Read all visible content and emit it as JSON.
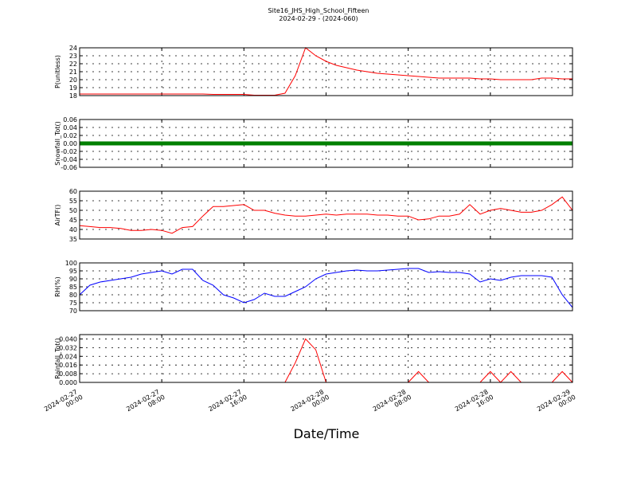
{
  "title": "Site16_JHS_High_School_Fifteen",
  "subtitle": "2024-02-29 - (2024-060)",
  "xlabel": "Date/Time",
  "chart_data": [
    {
      "type": "line",
      "ylabel": "P(unitless)",
      "color": "#ff0000",
      "ylim": [
        18,
        24
      ],
      "yticks": [
        18,
        19,
        20,
        21,
        22,
        23,
        24
      ],
      "grid": true,
      "xlim": [
        "2024-02-27 00:00",
        "2024-02-29 00:00"
      ],
      "x": [
        "2024-02-27 00:00",
        "2024-02-27 01:00",
        "2024-02-27 02:00",
        "2024-02-27 03:00",
        "2024-02-27 04:00",
        "2024-02-27 05:00",
        "2024-02-27 06:00",
        "2024-02-27 07:00",
        "2024-02-27 08:00",
        "2024-02-27 09:00",
        "2024-02-27 10:00",
        "2024-02-27 11:00",
        "2024-02-27 12:00",
        "2024-02-27 13:00",
        "2024-02-27 14:00",
        "2024-02-27 15:00",
        "2024-02-27 16:00",
        "2024-02-27 17:00",
        "2024-02-27 18:00",
        "2024-02-27 19:00",
        "2024-02-27 20:00",
        "2024-02-27 21:00",
        "2024-02-27 22:00",
        "2024-02-27 23:00",
        "2024-02-28 00:00",
        "2024-02-28 01:00",
        "2024-02-28 02:00",
        "2024-02-28 03:00",
        "2024-02-28 04:00",
        "2024-02-28 05:00",
        "2024-02-28 06:00",
        "2024-02-28 07:00",
        "2024-02-28 08:00",
        "2024-02-28 09:00",
        "2024-02-28 10:00",
        "2024-02-28 11:00",
        "2024-02-28 12:00",
        "2024-02-28 13:00",
        "2024-02-28 14:00",
        "2024-02-28 15:00",
        "2024-02-28 16:00",
        "2024-02-28 17:00",
        "2024-02-28 18:00",
        "2024-02-28 19:00",
        "2024-02-28 20:00",
        "2024-02-28 21:00",
        "2024-02-28 22:00",
        "2024-02-28 23:00",
        "2024-02-29 00:00"
      ],
      "values": [
        18.2,
        18.2,
        18.2,
        18.2,
        18.2,
        18.2,
        18.2,
        18.2,
        18.2,
        18.2,
        18.2,
        18.2,
        18.2,
        18.15,
        18.15,
        18.15,
        18.15,
        18.05,
        18.05,
        18.05,
        18.3,
        20.5,
        24,
        23,
        22.3,
        21.8,
        21.5,
        21.2,
        21,
        20.8,
        20.7,
        20.6,
        20.5,
        20.4,
        20.3,
        20.2,
        20.2,
        20.2,
        20.2,
        20.1,
        20.1,
        20,
        20,
        20,
        20,
        20.2,
        20.2,
        20.1,
        20.1
      ]
    },
    {
      "type": "line",
      "ylabel": "Snowfall_Tot()",
      "color": "#008000",
      "ylim": [
        -0.06,
        0.06
      ],
      "yticks": [
        -0.06,
        -0.04,
        -0.02,
        {
          "value": 0,
          "label": "0.00"
        },
        0.02,
        0.04,
        0.06
      ],
      "grid": true,
      "xlim": [
        "2024-02-27 00:00",
        "2024-02-29 00:00"
      ],
      "x": [
        "2024-02-27 00:00",
        "2024-02-27 01:00",
        "2024-02-27 02:00",
        "2024-02-27 03:00",
        "2024-02-27 04:00",
        "2024-02-27 05:00",
        "2024-02-27 06:00",
        "2024-02-27 07:00",
        "2024-02-27 08:00",
        "2024-02-27 09:00",
        "2024-02-27 10:00",
        "2024-02-27 11:00",
        "2024-02-27 12:00",
        "2024-02-27 13:00",
        "2024-02-27 14:00",
        "2024-02-27 15:00",
        "2024-02-27 16:00",
        "2024-02-27 17:00",
        "2024-02-27 18:00",
        "2024-02-27 19:00",
        "2024-02-27 20:00",
        "2024-02-27 21:00",
        "2024-02-27 22:00",
        "2024-02-27 23:00",
        "2024-02-28 00:00",
        "2024-02-28 01:00",
        "2024-02-28 02:00",
        "2024-02-28 03:00",
        "2024-02-28 04:00",
        "2024-02-28 05:00",
        "2024-02-28 06:00",
        "2024-02-28 07:00",
        "2024-02-28 08:00",
        "2024-02-28 09:00",
        "2024-02-28 10:00",
        "2024-02-28 11:00",
        "2024-02-28 12:00",
        "2024-02-28 13:00",
        "2024-02-28 14:00",
        "2024-02-28 15:00",
        "2024-02-28 16:00",
        "2024-02-28 17:00",
        "2024-02-28 18:00",
        "2024-02-28 19:00",
        "2024-02-28 20:00",
        "2024-02-28 21:00",
        "2024-02-28 22:00",
        "2024-02-28 23:00",
        "2024-02-29 00:00"
      ],
      "values": [
        0,
        0,
        0,
        0,
        0,
        0,
        0,
        0,
        0,
        0,
        0,
        0,
        0,
        0,
        0,
        0,
        0,
        0,
        0,
        0,
        0,
        0,
        0,
        0,
        0,
        0,
        0,
        0,
        0,
        0,
        0,
        0,
        0,
        0,
        0,
        0,
        0,
        0,
        0,
        0,
        0,
        0,
        0,
        0,
        0,
        0,
        0,
        0,
        0
      ]
    },
    {
      "type": "line",
      "ylabel": "AirTF()",
      "color": "#ff0000",
      "ylim": [
        35,
        60
      ],
      "yticks": [
        35,
        40,
        45,
        50,
        55,
        60
      ],
      "grid": true,
      "xlim": [
        "2024-02-27 00:00",
        "2024-02-29 00:00"
      ],
      "x": [
        "2024-02-27 00:00",
        "2024-02-27 01:00",
        "2024-02-27 02:00",
        "2024-02-27 03:00",
        "2024-02-27 04:00",
        "2024-02-27 05:00",
        "2024-02-27 06:00",
        "2024-02-27 07:00",
        "2024-02-27 08:00",
        "2024-02-27 09:00",
        "2024-02-27 10:00",
        "2024-02-27 11:00",
        "2024-02-27 12:00",
        "2024-02-27 13:00",
        "2024-02-27 14:00",
        "2024-02-27 15:00",
        "2024-02-27 16:00",
        "2024-02-27 17:00",
        "2024-02-27 18:00",
        "2024-02-27 19:00",
        "2024-02-27 20:00",
        "2024-02-27 21:00",
        "2024-02-27 22:00",
        "2024-02-27 23:00",
        "2024-02-28 00:00",
        "2024-02-28 01:00",
        "2024-02-28 02:00",
        "2024-02-28 03:00",
        "2024-02-28 04:00",
        "2024-02-28 05:00",
        "2024-02-28 06:00",
        "2024-02-28 07:00",
        "2024-02-28 08:00",
        "2024-02-28 09:00",
        "2024-02-28 10:00",
        "2024-02-28 11:00",
        "2024-02-28 12:00",
        "2024-02-28 13:00",
        "2024-02-28 14:00",
        "2024-02-28 15:00",
        "2024-02-28 16:00",
        "2024-02-28 17:00",
        "2024-02-28 18:00",
        "2024-02-28 19:00",
        "2024-02-28 20:00",
        "2024-02-28 21:00",
        "2024-02-28 22:00",
        "2024-02-28 23:00",
        "2024-02-29 00:00"
      ],
      "values": [
        42,
        41.5,
        41,
        41,
        40.5,
        39.5,
        39.5,
        40,
        39.5,
        38,
        41,
        41.5,
        47,
        52,
        52,
        52.5,
        53,
        50,
        50,
        48.5,
        47.5,
        47,
        47,
        47.5,
        48,
        47.5,
        48,
        48,
        48,
        47.5,
        47.5,
        47,
        47,
        45,
        45.5,
        47,
        47,
        48,
        53,
        48,
        50,
        51,
        50,
        49,
        49,
        50,
        53,
        57,
        50
      ]
    },
    {
      "type": "line",
      "ylabel": "RH(%)",
      "color": "#0000ff",
      "ylim": [
        70,
        100
      ],
      "yticks": [
        70,
        75,
        80,
        85,
        90,
        95,
        100
      ],
      "grid": true,
      "xlim": [
        "2024-02-27 00:00",
        "2024-02-29 00:00"
      ],
      "x": [
        "2024-02-27 00:00",
        "2024-02-27 01:00",
        "2024-02-27 02:00",
        "2024-02-27 03:00",
        "2024-02-27 04:00",
        "2024-02-27 05:00",
        "2024-02-27 06:00",
        "2024-02-27 07:00",
        "2024-02-27 08:00",
        "2024-02-27 09:00",
        "2024-02-27 10:00",
        "2024-02-27 11:00",
        "2024-02-27 12:00",
        "2024-02-27 13:00",
        "2024-02-27 14:00",
        "2024-02-27 15:00",
        "2024-02-27 16:00",
        "2024-02-27 17:00",
        "2024-02-27 18:00",
        "2024-02-27 19:00",
        "2024-02-27 20:00",
        "2024-02-27 21:00",
        "2024-02-27 22:00",
        "2024-02-27 23:00",
        "2024-02-28 00:00",
        "2024-02-28 01:00",
        "2024-02-28 02:00",
        "2024-02-28 03:00",
        "2024-02-28 04:00",
        "2024-02-28 05:00",
        "2024-02-28 06:00",
        "2024-02-28 07:00",
        "2024-02-28 08:00",
        "2024-02-28 09:00",
        "2024-02-28 10:00",
        "2024-02-28 11:00",
        "2024-02-28 12:00",
        "2024-02-28 13:00",
        "2024-02-28 14:00",
        "2024-02-28 15:00",
        "2024-02-28 16:00",
        "2024-02-28 17:00",
        "2024-02-28 18:00",
        "2024-02-28 19:00",
        "2024-02-28 20:00",
        "2024-02-28 21:00",
        "2024-02-28 22:00",
        "2024-02-28 23:00",
        "2024-02-29 00:00"
      ],
      "values": [
        80,
        86,
        88,
        89,
        90,
        91,
        93,
        94,
        95,
        93,
        96,
        96,
        89,
        86,
        80,
        78,
        75,
        77,
        81,
        79,
        79,
        82,
        85,
        90,
        93,
        94,
        95,
        95.5,
        95,
        95,
        95.5,
        96,
        96.5,
        96.5,
        94,
        94.5,
        94,
        94,
        93,
        88,
        90,
        89,
        91,
        92,
        92,
        92,
        91,
        80,
        72
      ]
    },
    {
      "type": "line",
      "ylabel": "Rainfall_Tot()",
      "color": "#ff0000",
      "ylim": [
        0,
        0.044
      ],
      "yticks": [
        {
          "value": 0,
          "label": "0.000"
        },
        0.008,
        0.016,
        0.024,
        0.032,
        {
          "value": 0.04,
          "label": "0.040"
        }
      ],
      "grid": true,
      "xlim": [
        "2024-02-27 00:00",
        "2024-02-29 00:00"
      ],
      "xticks": [
        "2024-02-27 00:00",
        "2024-02-27 08:00",
        "2024-02-27 16:00",
        "2024-02-28 00:00",
        "2024-02-28 08:00",
        "2024-02-28 16:00",
        "2024-02-29 00:00"
      ],
      "x": [
        "2024-02-27 00:00",
        "2024-02-27 01:00",
        "2024-02-27 02:00",
        "2024-02-27 03:00",
        "2024-02-27 04:00",
        "2024-02-27 05:00",
        "2024-02-27 06:00",
        "2024-02-27 07:00",
        "2024-02-27 08:00",
        "2024-02-27 09:00",
        "2024-02-27 10:00",
        "2024-02-27 11:00",
        "2024-02-27 12:00",
        "2024-02-27 13:00",
        "2024-02-27 14:00",
        "2024-02-27 15:00",
        "2024-02-27 16:00",
        "2024-02-27 17:00",
        "2024-02-27 18:00",
        "2024-02-27 19:00",
        "2024-02-27 20:00",
        "2024-02-27 21:00",
        "2024-02-27 22:00",
        "2024-02-27 23:00",
        "2024-02-28 00:00",
        "2024-02-28 01:00",
        "2024-02-28 02:00",
        "2024-02-28 03:00",
        "2024-02-28 04:00",
        "2024-02-28 05:00",
        "2024-02-28 06:00",
        "2024-02-28 07:00",
        "2024-02-28 08:00",
        "2024-02-28 09:00",
        "2024-02-28 10:00",
        "2024-02-28 11:00",
        "2024-02-28 12:00",
        "2024-02-28 13:00",
        "2024-02-28 14:00",
        "2024-02-28 15:00",
        "2024-02-28 16:00",
        "2024-02-28 17:00",
        "2024-02-28 18:00",
        "2024-02-28 19:00",
        "2024-02-28 20:00",
        "2024-02-28 21:00",
        "2024-02-28 22:00",
        "2024-02-28 23:00",
        "2024-02-29 00:00"
      ],
      "values": [
        0,
        0,
        0,
        0,
        0,
        0,
        0,
        0,
        0,
        0,
        0,
        0,
        0,
        0,
        0,
        0,
        0,
        0,
        0,
        0,
        0,
        0.018,
        0.04,
        0.03,
        0,
        0,
        0,
        0,
        0,
        0,
        0,
        0,
        0,
        0.01,
        0,
        0,
        0,
        0,
        0,
        0,
        0.01,
        0,
        0.01,
        0,
        0,
        0,
        0,
        0.01,
        0
      ]
    }
  ]
}
